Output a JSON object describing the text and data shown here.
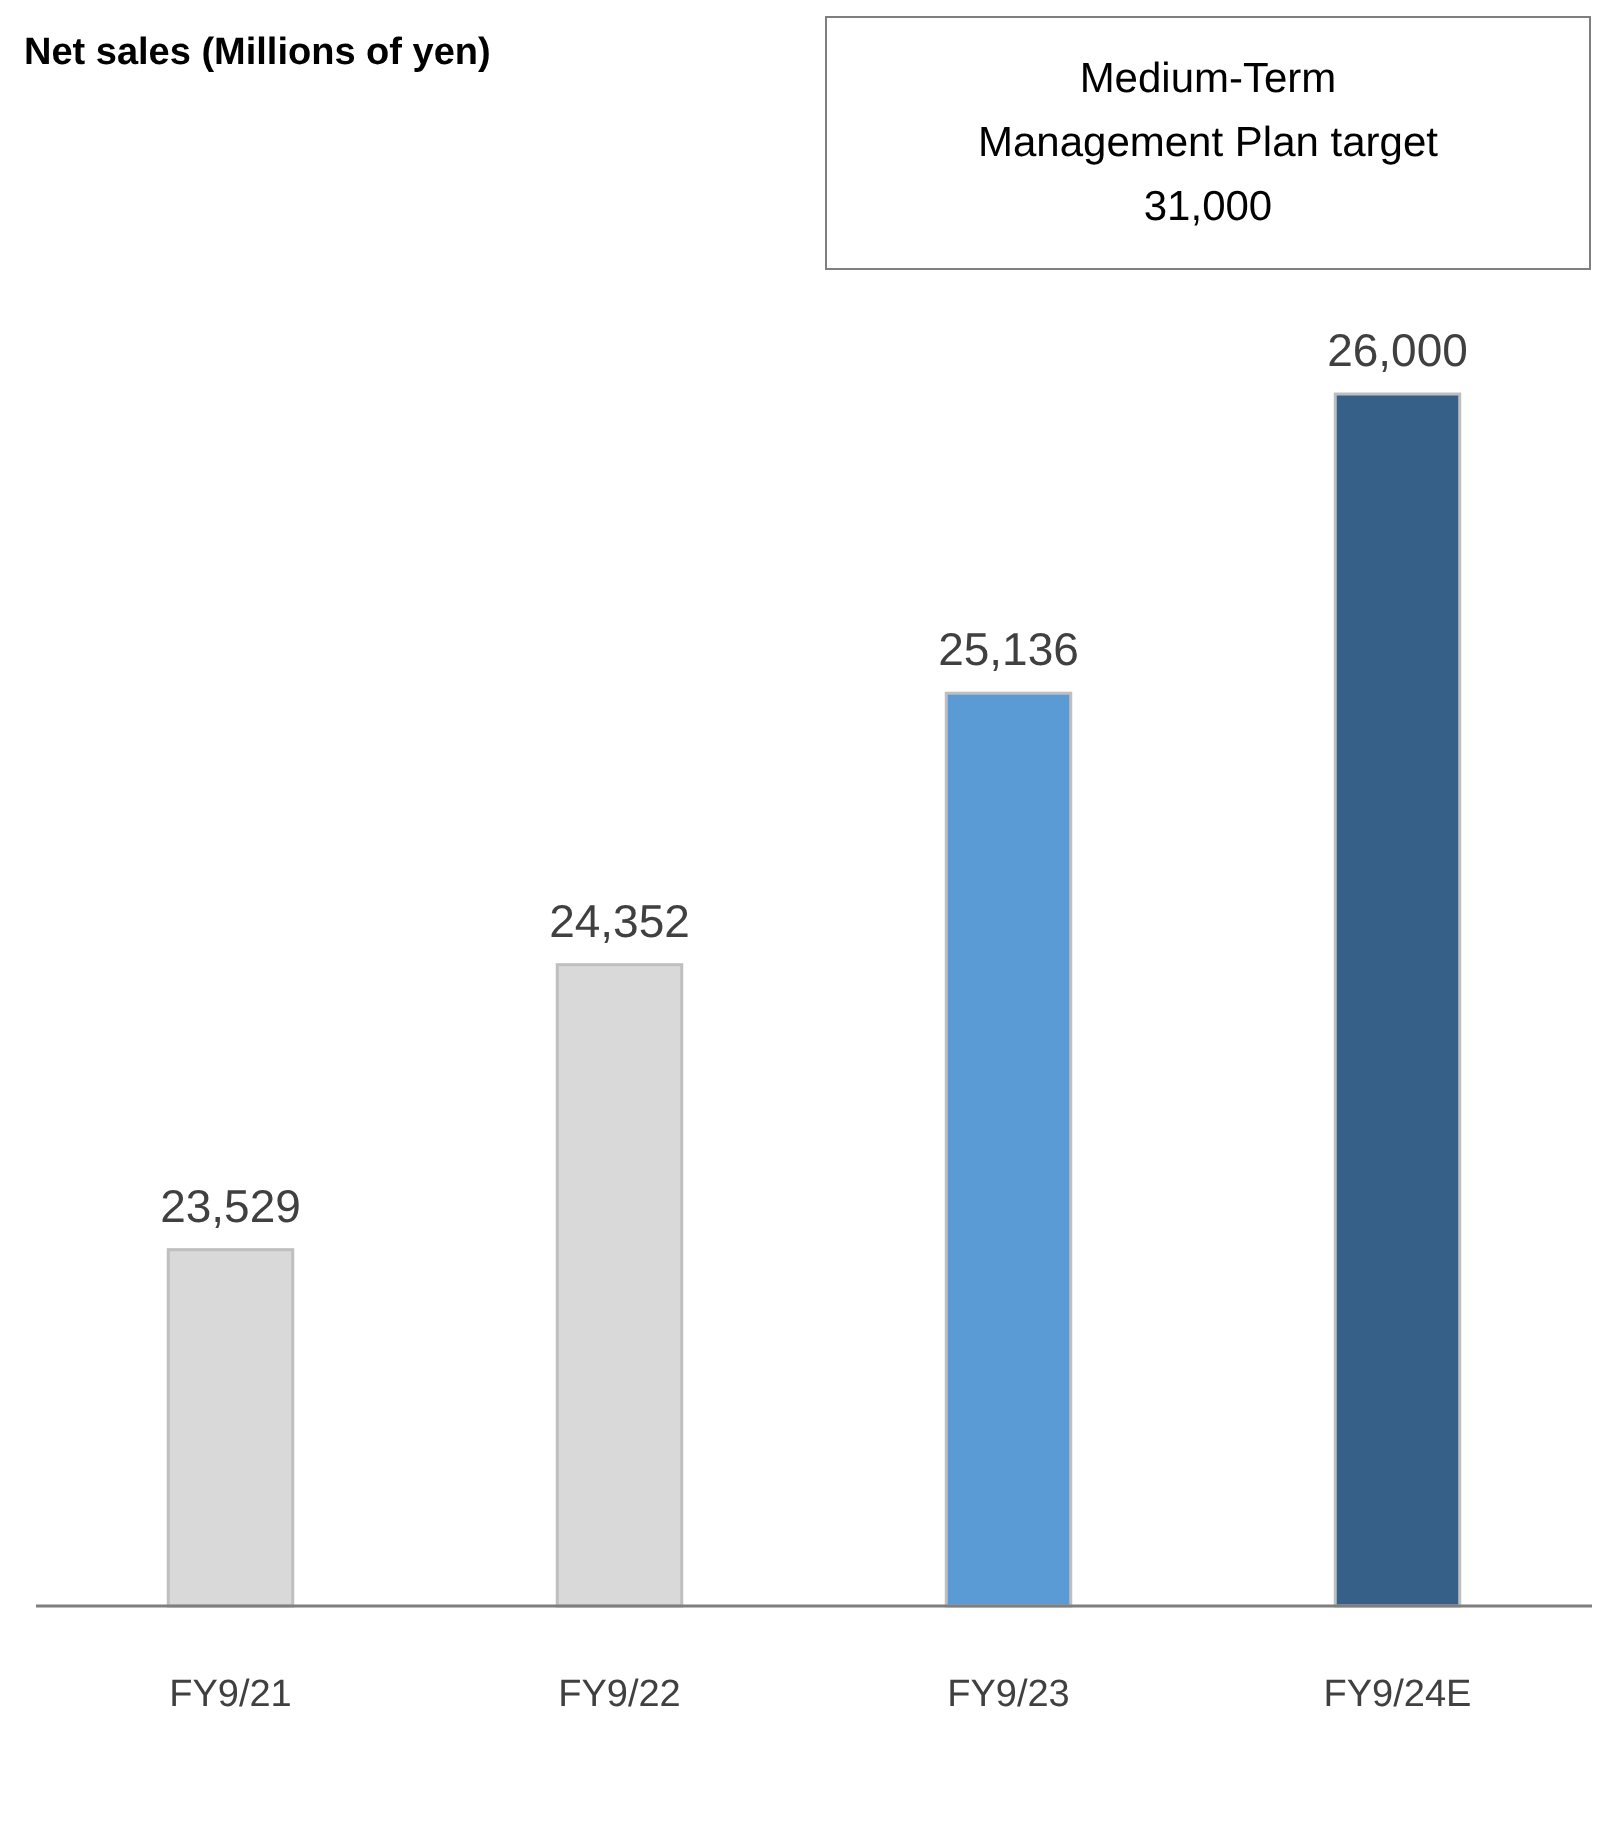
{
  "chart_data": {
    "type": "bar",
    "title": "Net sales (Millions of yen)",
    "categories": [
      "FY9/21",
      "FY9/22",
      "FY9/23",
      "FY9/24E"
    ],
    "values": [
      23529,
      24352,
      25136,
      26000
    ],
    "colors": [
      "#d9d9d9",
      "#d9d9d9",
      "#5b9bd5",
      "#376089"
    ],
    "ylim": [
      22500,
      26000
    ],
    "data_labels": true,
    "value_labels": [
      "23,529",
      "24,352",
      "25,136",
      "26,000"
    ],
    "annotations": [
      "Medium-Term\nManagement Plan target\n31,000"
    ]
  }
}
